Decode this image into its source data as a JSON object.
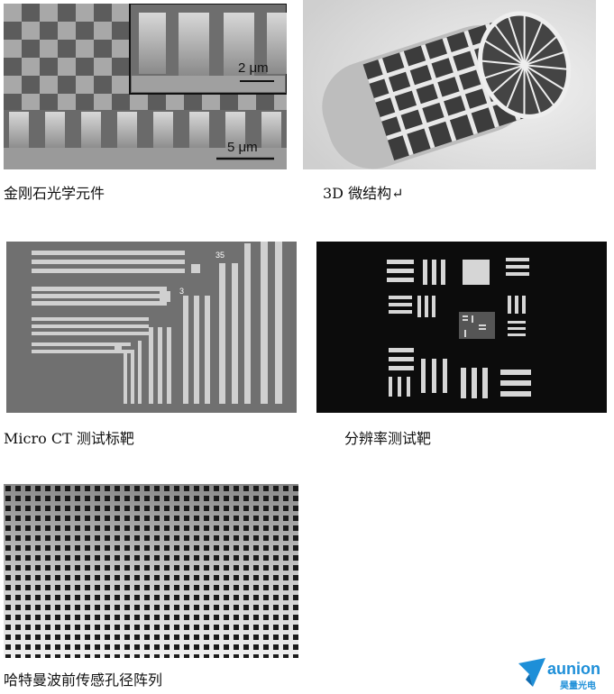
{
  "panels": [
    {
      "caption": "金刚石光学元件",
      "scale_main": "5 μm",
      "scale_inset": "2 μm"
    },
    {
      "caption": "3D 微结构↵"
    },
    {
      "caption": "Micro CT 测试标靶",
      "marks": [
        "35",
        "3"
      ]
    },
    {
      "caption": "分辨率测试靶"
    },
    {
      "caption": "哈特曼波前传感孔径阵列"
    }
  ],
  "logo": {
    "name": "aunion",
    "subtitle": "昊量光电",
    "brand_color": "#1e8fd8"
  }
}
